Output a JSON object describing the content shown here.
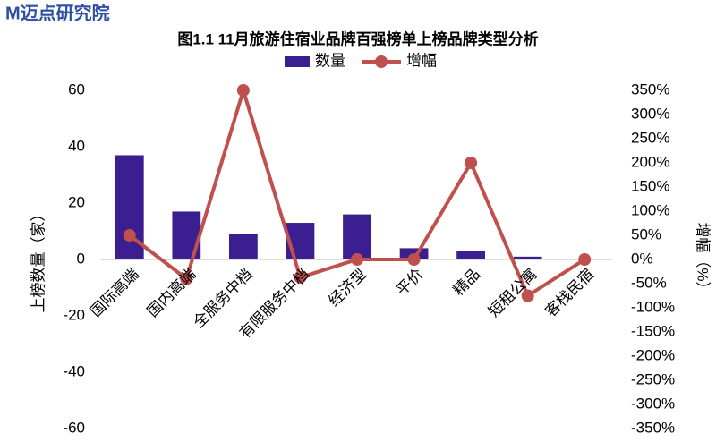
{
  "logo": "M迈点研究院",
  "chart_data": {
    "type": "bar-line",
    "title": "图1.1 11月旅游住宿业品牌百强榜单上榜品牌类型分析",
    "y_label": "上榜数量（家）",
    "y2_label": "增幅（%）",
    "categories": [
      "国际高端",
      "国内高端",
      "全服务中档",
      "有限服务中档",
      "经济型",
      "平价",
      "精品",
      "短租公寓",
      "客栈民宿"
    ],
    "series": [
      {
        "name": "数量",
        "type": "bar",
        "color": "#3b1e8f",
        "values": [
          37,
          17,
          9,
          13,
          16,
          4,
          3,
          1,
          0
        ]
      },
      {
        "name": "增幅",
        "type": "line",
        "axis": "y2",
        "color": "#c0504d",
        "values": [
          50,
          -40,
          350,
          -37,
          0,
          0,
          200,
          -75,
          0
        ]
      }
    ],
    "ylim": [
      -60,
      60
    ],
    "yticks": [
      -60,
      -40,
      -20,
      0,
      20,
      40,
      60
    ],
    "y2lim": [
      -350,
      350
    ],
    "y2ticks": [
      {
        "value": -350,
        "label": "-350%"
      },
      {
        "value": -300,
        "label": "-300%"
      },
      {
        "value": -250,
        "label": "-250%"
      },
      {
        "value": -200,
        "label": "-200%"
      },
      {
        "value": -150,
        "label": "-150%"
      },
      {
        "value": -100,
        "label": "-100%"
      },
      {
        "value": -50,
        "label": "-50%"
      },
      {
        "value": 0,
        "label": "0%"
      },
      {
        "value": 50,
        "label": "50%"
      },
      {
        "value": 100,
        "label": "100%"
      },
      {
        "value": 150,
        "label": "150%"
      },
      {
        "value": 200,
        "label": "200%"
      },
      {
        "value": 250,
        "label": "250%"
      },
      {
        "value": 300,
        "label": "300%"
      },
      {
        "value": 350,
        "label": "350%"
      }
    ],
    "grid": false,
    "legend": "top"
  }
}
